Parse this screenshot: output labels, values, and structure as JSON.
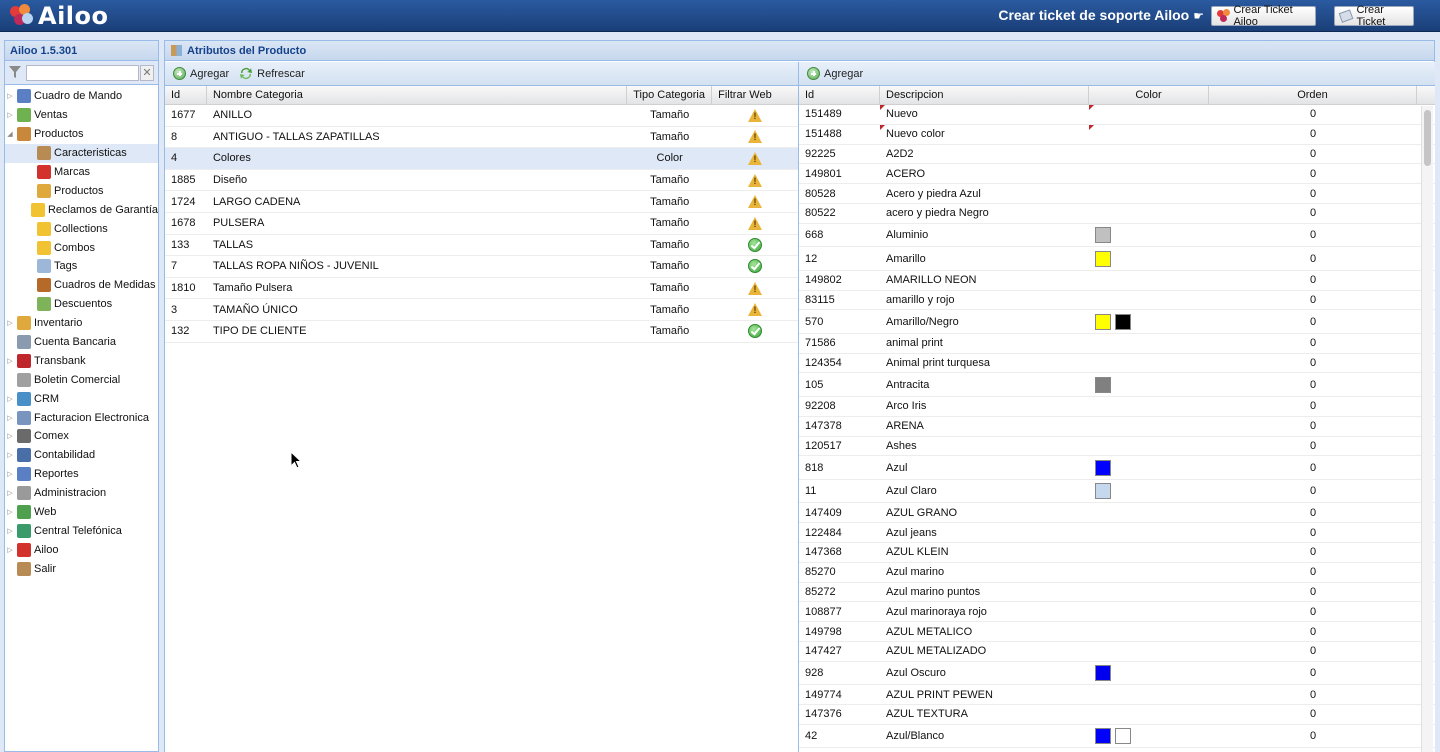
{
  "header": {
    "logo_text": "Ailoo",
    "support_title": "Crear ticket de soporte Ailoo",
    "support_hand": "☛",
    "btn_ticket_ailoo": "Crear Ticket Ailoo",
    "btn_ticket": "Crear Ticket"
  },
  "sidebar": {
    "title": "Ailoo 1.5.301",
    "filter_clear": "✕",
    "items": [
      {
        "label": "Cuadro de Mando",
        "arrow": "▷",
        "icon": "chart-icon",
        "color": "#5b7fc4"
      },
      {
        "label": "Ventas",
        "arrow": "▷",
        "icon": "money-icon",
        "color": "#6fb04f"
      },
      {
        "label": "Productos",
        "arrow": "◢",
        "icon": "folder-icon",
        "color": "#c8873a"
      },
      {
        "label": "Caracteristicas",
        "arrow": "",
        "icon": "attributes-icon",
        "color": "#b88b54",
        "child": true,
        "selected": true
      },
      {
        "label": "Marcas",
        "arrow": "",
        "icon": "ribbon-icon",
        "color": "#d3312b",
        "child": true
      },
      {
        "label": "Productos",
        "arrow": "",
        "icon": "box-icon",
        "color": "#e0a93e",
        "child": true
      },
      {
        "label": "Reclamos de Garantía",
        "arrow": "",
        "icon": "folder-icon",
        "color": "#f1c232",
        "child": true
      },
      {
        "label": "Collections",
        "arrow": "",
        "icon": "folder-icon",
        "color": "#f1c232",
        "child": true
      },
      {
        "label": "Combos",
        "arrow": "",
        "icon": "folder-icon",
        "color": "#f1c232",
        "child": true
      },
      {
        "label": "Tags",
        "arrow": "",
        "icon": "tag-icon",
        "color": "#9db7d8",
        "child": true
      },
      {
        "label": "Cuadros de Medidas",
        "arrow": "",
        "icon": "ruler-icon",
        "color": "#b56a2a",
        "child": true
      },
      {
        "label": "Descuentos",
        "arrow": "",
        "icon": "discount-icon",
        "color": "#7fb35a",
        "child": true
      },
      {
        "label": "Inventario",
        "arrow": "▷",
        "icon": "box-icon",
        "color": "#e0a93e"
      },
      {
        "label": "Cuenta Bancaria",
        "arrow": "",
        "icon": "bank-icon",
        "color": "#8a9bb0"
      },
      {
        "label": "Transbank",
        "arrow": "▷",
        "icon": "transbank-icon",
        "color": "#c0272d"
      },
      {
        "label": "Boletin Comercial",
        "arrow": "",
        "icon": "tag-icon",
        "color": "#a0a0a0"
      },
      {
        "label": "CRM",
        "arrow": "▷",
        "icon": "crm-icon",
        "color": "#4a90c8"
      },
      {
        "label": "Facturacion Electronica",
        "arrow": "▷",
        "icon": "invoice-icon",
        "color": "#7a94c0"
      },
      {
        "label": "Comex",
        "arrow": "▷",
        "icon": "truck-icon",
        "color": "#6a6a6a"
      },
      {
        "label": "Contabilidad",
        "arrow": "▷",
        "icon": "calculator-icon",
        "color": "#4a6fa8"
      },
      {
        "label": "Reportes",
        "arrow": "▷",
        "icon": "report-icon",
        "color": "#5b7fc4"
      },
      {
        "label": "Administracion",
        "arrow": "▷",
        "icon": "gear-icon",
        "color": "#9a9a9a"
      },
      {
        "label": "Web",
        "arrow": "▷",
        "icon": "globe-icon",
        "color": "#4ea04e"
      },
      {
        "label": "Central Telefónica",
        "arrow": "▷",
        "icon": "phone-icon",
        "color": "#3a9a6a"
      },
      {
        "label": "Ailoo",
        "arrow": "▷",
        "icon": "ailoo-icon",
        "color": "#d3312b"
      },
      {
        "label": "Salir",
        "arrow": "",
        "icon": "exit-icon",
        "color": "#b88b54"
      }
    ]
  },
  "main": {
    "title": "Atributos del Producto",
    "left": {
      "btn_add": "Agregar",
      "btn_refresh": "Refrescar",
      "columns": [
        "Id",
        "Nombre Categoria",
        "Tipo Categoria",
        "Filtrar Web"
      ],
      "rows": [
        {
          "id": "1677",
          "name": "ANILLO",
          "type": "Tamaño",
          "web": "warn"
        },
        {
          "id": "8",
          "name": "ANTIGUO - TALLAS ZAPATILLAS",
          "type": "Tamaño",
          "web": "warn"
        },
        {
          "id": "4",
          "name": "Colores",
          "type": "Color",
          "web": "warn",
          "selected": true
        },
        {
          "id": "1885",
          "name": "Diseño",
          "type": "Tamaño",
          "web": "warn"
        },
        {
          "id": "1724",
          "name": "LARGO CADENA",
          "type": "Tamaño",
          "web": "warn"
        },
        {
          "id": "1678",
          "name": "PULSERA",
          "type": "Tamaño",
          "web": "warn"
        },
        {
          "id": "133",
          "name": "TALLAS",
          "type": "Tamaño",
          "web": "ok"
        },
        {
          "id": "7",
          "name": "TALLAS ROPA NIÑOS - JUVENIL",
          "type": "Tamaño",
          "web": "ok"
        },
        {
          "id": "1810",
          "name": "Tamaño Pulsera",
          "type": "Tamaño",
          "web": "warn"
        },
        {
          "id": "3",
          "name": "TAMAÑO ÚNICO",
          "type": "Tamaño",
          "web": "warn"
        },
        {
          "id": "132",
          "name": "TIPO DE CLIENTE",
          "type": "Tamaño",
          "web": "ok"
        }
      ]
    },
    "right": {
      "btn_add": "Agregar",
      "columns": [
        "Id",
        "Descripcion",
        "Color",
        "Orden"
      ],
      "rows": [
        {
          "id": "151489",
          "desc": "Nuevo",
          "colors": [],
          "order": "0",
          "dirty": true
        },
        {
          "id": "151488",
          "desc": "Nuevo color",
          "colors": [],
          "order": "0",
          "dirty": true
        },
        {
          "id": "92225",
          "desc": "A2D2",
          "colors": [],
          "order": "0"
        },
        {
          "id": "149801",
          "desc": "ACERO",
          "colors": [],
          "order": "0"
        },
        {
          "id": "80528",
          "desc": "Acero y piedra Azul",
          "colors": [],
          "order": "0"
        },
        {
          "id": "80522",
          "desc": "acero y piedra Negro",
          "colors": [],
          "order": "0"
        },
        {
          "id": "668",
          "desc": "Aluminio",
          "colors": [
            "#c0c0c0"
          ],
          "order": "0"
        },
        {
          "id": "12",
          "desc": "Amarillo",
          "colors": [
            "#ffff00"
          ],
          "order": "0"
        },
        {
          "id": "149802",
          "desc": "AMARILLO NEON",
          "colors": [],
          "order": "0"
        },
        {
          "id": "83115",
          "desc": "amarillo y rojo",
          "colors": [],
          "order": "0"
        },
        {
          "id": "570",
          "desc": "Amarillo/Negro",
          "colors": [
            "#ffff00",
            "#000000"
          ],
          "order": "0"
        },
        {
          "id": "71586",
          "desc": "animal print",
          "colors": [],
          "order": "0"
        },
        {
          "id": "124354",
          "desc": "Animal print turquesa",
          "colors": [],
          "order": "0"
        },
        {
          "id": "105",
          "desc": "Antracita",
          "colors": [
            "#808080"
          ],
          "order": "0"
        },
        {
          "id": "92208",
          "desc": "Arco Iris",
          "colors": [],
          "order": "0"
        },
        {
          "id": "147378",
          "desc": "ARENA",
          "colors": [],
          "order": "0"
        },
        {
          "id": "120517",
          "desc": "Ashes",
          "colors": [],
          "order": "0"
        },
        {
          "id": "818",
          "desc": "Azul",
          "colors": [
            "#0000ff"
          ],
          "order": "0"
        },
        {
          "id": "11",
          "desc": "Azul Claro",
          "colors": [
            "#c6d8ee"
          ],
          "order": "0"
        },
        {
          "id": "147409",
          "desc": "AZUL GRANO",
          "colors": [],
          "order": "0"
        },
        {
          "id": "122484",
          "desc": "Azul jeans",
          "colors": [],
          "order": "0"
        },
        {
          "id": "147368",
          "desc": "AZUL KLEIN",
          "colors": [],
          "order": "0"
        },
        {
          "id": "85270",
          "desc": "Azul marino",
          "colors": [],
          "order": "0"
        },
        {
          "id": "85272",
          "desc": "Azul marino puntos",
          "colors": [],
          "order": "0"
        },
        {
          "id": "108877",
          "desc": "Azul marinoraya rojo",
          "colors": [],
          "order": "0"
        },
        {
          "id": "149798",
          "desc": "AZUL METALICO",
          "colors": [],
          "order": "0"
        },
        {
          "id": "147427",
          "desc": "AZUL METALIZADO",
          "colors": [],
          "order": "0"
        },
        {
          "id": "928",
          "desc": "Azul Oscuro",
          "colors": [
            "#0000ee"
          ],
          "order": "0"
        },
        {
          "id": "149774",
          "desc": "AZUL PRINT PEWEN",
          "colors": [],
          "order": "0"
        },
        {
          "id": "147376",
          "desc": "AZUL TEXTURA",
          "colors": [],
          "order": "0"
        },
        {
          "id": "42",
          "desc": "Azul/Blanco",
          "colors": [
            "#0000ff",
            "#ffffff"
          ],
          "order": "0"
        }
      ]
    }
  }
}
